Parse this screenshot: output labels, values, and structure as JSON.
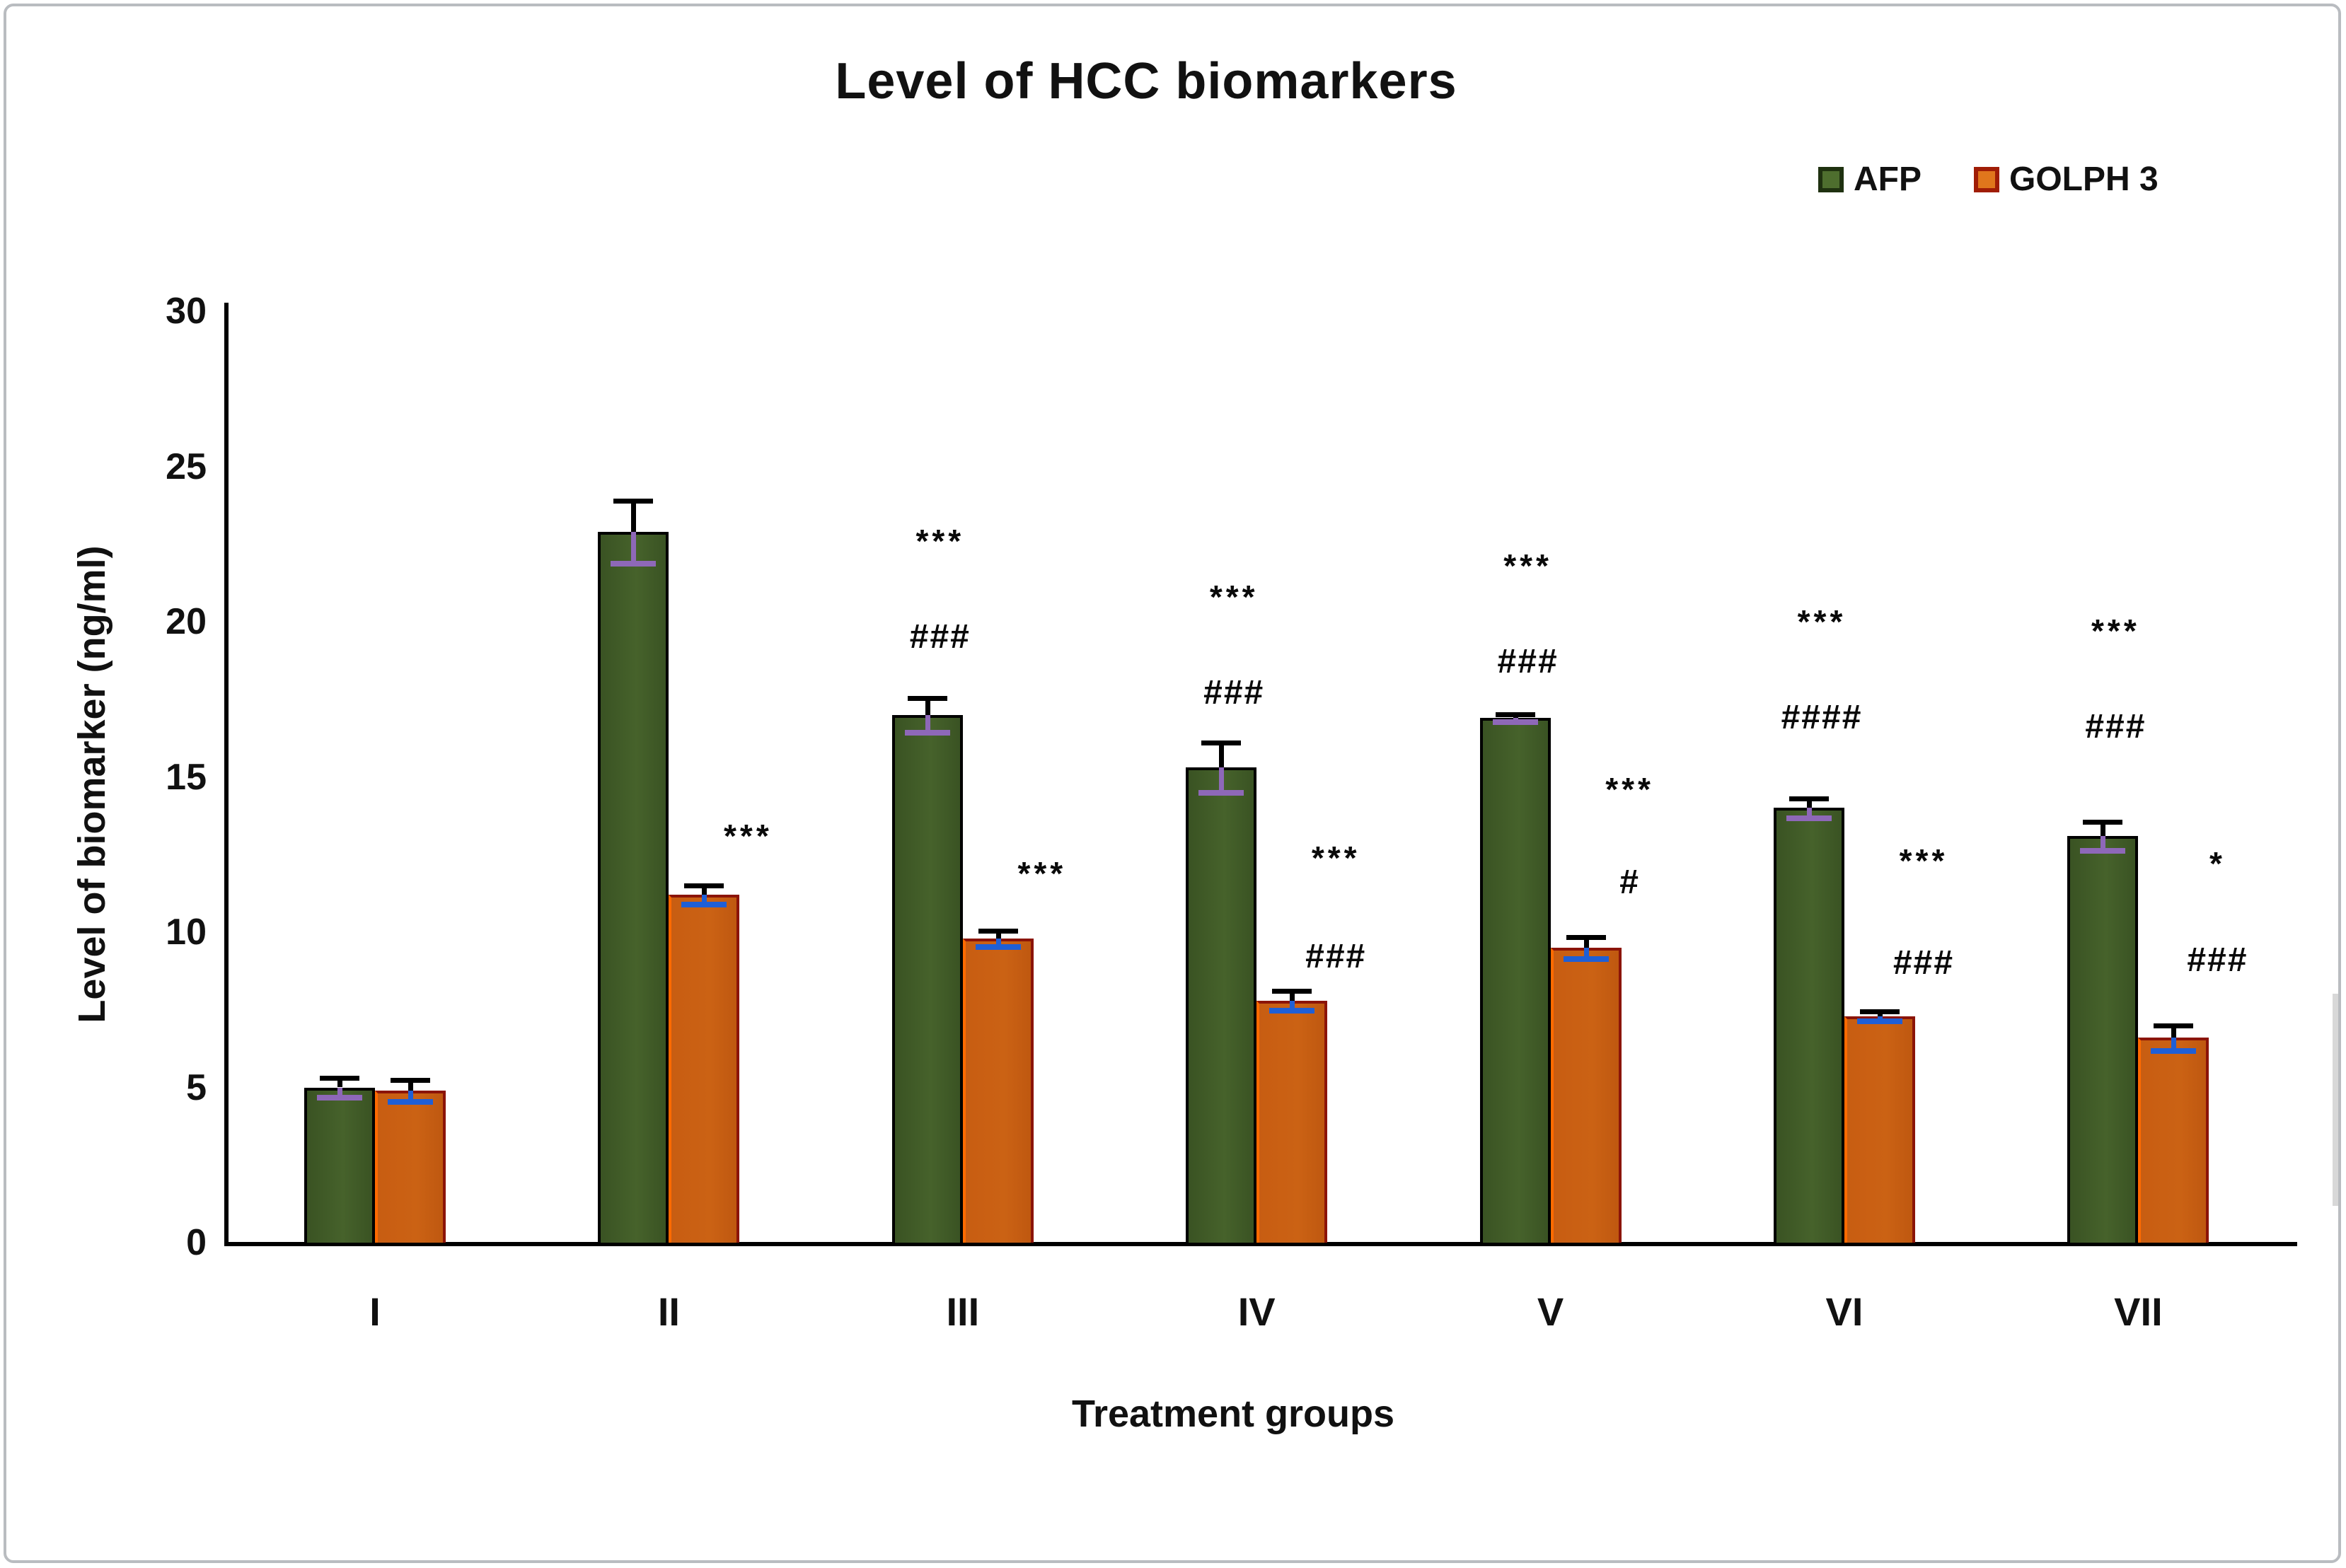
{
  "chart_data": {
    "type": "bar",
    "title": "Level of HCC biomarkers",
    "xlabel": "Treatment groups",
    "ylabel": "Level of biomarker (ng/ml)",
    "categories": [
      "I",
      "II",
      "III",
      "IV",
      "V",
      "VI",
      "VII"
    ],
    "ylim": [
      0,
      30
    ],
    "yticks": [
      0,
      5,
      10,
      15,
      20,
      25,
      30
    ],
    "grid": false,
    "legend_position": "top-right",
    "bar_outline_colors": {
      "afp": "#000000",
      "golph": "#8b1408"
    },
    "error_whisker_colors": {
      "upper": "#000000",
      "afp_lower": "#8e68b8",
      "golph_lower": "#1f5fd6"
    },
    "series": [
      {
        "name": "AFP",
        "color": "#3e5a26",
        "values": [
          5.0,
          22.9,
          17.0,
          15.3,
          16.9,
          14.0,
          13.1
        ],
        "errors": [
          0.3,
          1.0,
          0.55,
          0.8,
          0.12,
          0.3,
          0.45
        ],
        "annotations": [
          [],
          [],
          [
            {
              "text": "***",
              "y": 22.6
            },
            {
              "text": "###",
              "y": 19.5
            }
          ],
          [
            {
              "text": "***",
              "y": 20.8
            },
            {
              "text": "###",
              "y": 17.7
            }
          ],
          [
            {
              "text": "***",
              "y": 21.8
            },
            {
              "text": "###",
              "y": 18.7
            }
          ],
          [
            {
              "text": "***",
              "y": 20.0
            },
            {
              "text": "####",
              "y": 16.9
            }
          ],
          [
            {
              "text": "***",
              "y": 19.7
            },
            {
              "text": "###",
              "y": 16.6
            }
          ]
        ]
      },
      {
        "name": "GOLPH 3",
        "color": "#c65c11",
        "values": [
          4.9,
          11.2,
          9.8,
          7.8,
          9.5,
          7.3,
          6.6
        ],
        "errors": [
          0.35,
          0.3,
          0.25,
          0.3,
          0.35,
          0.15,
          0.4
        ],
        "annotations": [
          [],
          [
            {
              "text": "***",
              "y": 13.1
            }
          ],
          [
            {
              "text": "***",
              "y": 11.9
            }
          ],
          [
            {
              "text": "***",
              "y": 12.4
            },
            {
              "text": "###",
              "y": 9.2
            }
          ],
          [
            {
              "text": "***",
              "y": 14.6
            },
            {
              "text": "#",
              "y": 11.6
            }
          ],
          [
            {
              "text": "***",
              "y": 12.3
            },
            {
              "text": "###",
              "y": 9.0
            }
          ],
          [
            {
              "text": "*",
              "y": 12.2
            },
            {
              "text": "###",
              "y": 9.1
            }
          ]
        ]
      }
    ]
  }
}
